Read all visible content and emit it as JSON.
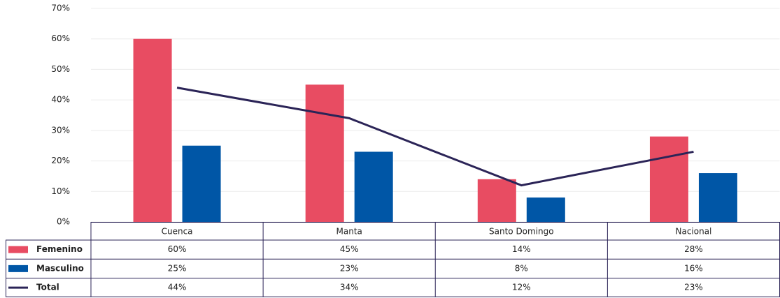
{
  "chart_data": {
    "type": "bar",
    "categories": [
      "Cuenca",
      "Manta",
      "Santo Domingo",
      "Nacional"
    ],
    "series": [
      {
        "name": "Femenino",
        "color": "#e84c62",
        "type": "bar",
        "values": [
          60,
          45,
          14,
          28
        ],
        "value_labels": [
          "60%",
          "45%",
          "14%",
          "28%"
        ]
      },
      {
        "name": "Masculino",
        "color": "#0056a6",
        "type": "bar",
        "values": [
          25,
          23,
          8,
          16
        ],
        "value_labels": [
          "25%",
          "23%",
          "8%",
          "16%"
        ]
      },
      {
        "name": "Total",
        "color": "#2b2457",
        "type": "line",
        "values": [
          44,
          34,
          12,
          23
        ],
        "value_labels": [
          "44%",
          "34%",
          "12%",
          "23%"
        ]
      }
    ],
    "ylim": [
      0,
      70
    ],
    "yticks": [
      {
        "value": 0,
        "label": "0%"
      },
      {
        "value": 10,
        "label": "10%"
      },
      {
        "value": 20,
        "label": "20%"
      },
      {
        "value": 30,
        "label": "30%"
      },
      {
        "value": 40,
        "label": "40%"
      },
      {
        "value": 50,
        "label": "50%"
      },
      {
        "value": 60,
        "label": "60%"
      },
      {
        "value": 70,
        "label": "70%"
      }
    ],
    "grid": true
  }
}
